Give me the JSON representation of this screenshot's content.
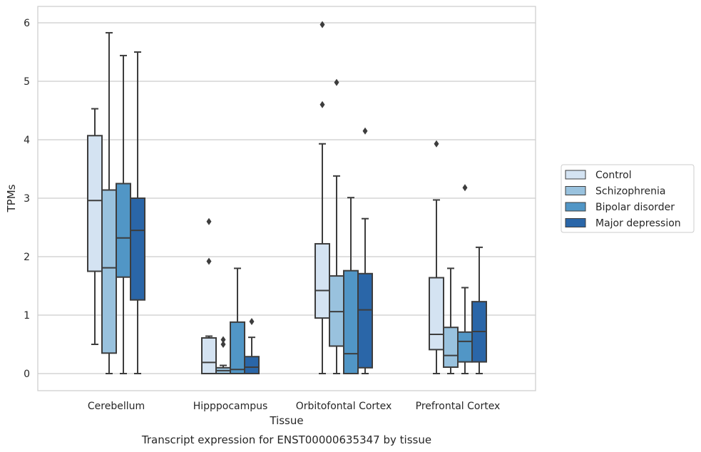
{
  "chart_data": {
    "type": "boxplot",
    "title": "",
    "caption": "Transcript expression for ENST00000635347 by tissue",
    "xlabel": "Tissue",
    "ylabel": "TPMs",
    "ylim": [
      -0.3,
      6.3
    ],
    "yticks": [
      "0",
      "1",
      "2",
      "3",
      "4",
      "5",
      "6"
    ],
    "categories": [
      "Cerebellum",
      "Hipppocampus",
      "Orbitofontal Cortex",
      "Prefrontal Cortex"
    ],
    "grid": "horizontal",
    "legend_position": "right",
    "series": [
      {
        "name": "Control",
        "color": "#d4e3f2",
        "boxes": [
          {
            "whisker_low": 0.5,
            "q1": 1.75,
            "median": 2.96,
            "q3": 4.07,
            "whisker_high": 4.53,
            "outliers": []
          },
          {
            "whisker_low": 0.0,
            "q1": 0.0,
            "median": 0.19,
            "q3": 0.61,
            "whisker_high": 0.64,
            "outliers": [
              1.92,
              2.6
            ]
          },
          {
            "whisker_low": 0.0,
            "q1": 0.95,
            "median": 1.42,
            "q3": 2.22,
            "whisker_high": 3.93,
            "outliers": [
              4.6,
              5.97
            ]
          },
          {
            "whisker_low": 0.0,
            "q1": 0.41,
            "median": 0.67,
            "q3": 1.64,
            "whisker_high": 2.97,
            "outliers": [
              3.93
            ]
          }
        ]
      },
      {
        "name": "Schizophrenia",
        "color": "#99c2de",
        "boxes": [
          {
            "whisker_low": 0.0,
            "q1": 0.35,
            "median": 1.81,
            "q3": 3.14,
            "whisker_high": 5.83,
            "outliers": []
          },
          {
            "whisker_low": 0.0,
            "q1": 0.0,
            "median": 0.05,
            "q3": 0.1,
            "whisker_high": 0.14,
            "outliers": [
              0.5,
              0.58
            ]
          },
          {
            "whisker_low": 0.0,
            "q1": 0.47,
            "median": 1.06,
            "q3": 1.67,
            "whisker_high": 3.38,
            "outliers": [
              4.98
            ]
          },
          {
            "whisker_low": 0.0,
            "q1": 0.11,
            "median": 0.31,
            "q3": 0.79,
            "whisker_high": 1.8,
            "outliers": []
          }
        ]
      },
      {
        "name": "Bipolar disorder",
        "color": "#5196c6",
        "boxes": [
          {
            "whisker_low": 0.0,
            "q1": 1.65,
            "median": 2.32,
            "q3": 3.25,
            "whisker_high": 5.44,
            "outliers": []
          },
          {
            "whisker_low": 0.0,
            "q1": 0.0,
            "median": 0.07,
            "q3": 0.88,
            "whisker_high": 1.8,
            "outliers": []
          },
          {
            "whisker_low": 0.0,
            "q1": 0.0,
            "median": 0.34,
            "q3": 1.76,
            "whisker_high": 3.01,
            "outliers": []
          },
          {
            "whisker_low": 0.0,
            "q1": 0.2,
            "median": 0.55,
            "q3": 0.71,
            "whisker_high": 1.47,
            "outliers": [
              3.18
            ]
          }
        ]
      },
      {
        "name": "Major depression",
        "color": "#2a66a8",
        "boxes": [
          {
            "whisker_low": 0.0,
            "q1": 1.26,
            "median": 2.45,
            "q3": 3.0,
            "whisker_high": 5.5,
            "outliers": []
          },
          {
            "whisker_low": 0.0,
            "q1": 0.0,
            "median": 0.11,
            "q3": 0.29,
            "whisker_high": 0.62,
            "outliers": [
              0.89
            ]
          },
          {
            "whisker_low": 0.0,
            "q1": 0.1,
            "median": 1.09,
            "q3": 1.71,
            "whisker_high": 2.65,
            "outliers": [
              4.15
            ]
          },
          {
            "whisker_low": 0.0,
            "q1": 0.2,
            "median": 0.72,
            "q3": 1.23,
            "whisker_high": 2.16,
            "outliers": []
          }
        ]
      }
    ]
  }
}
